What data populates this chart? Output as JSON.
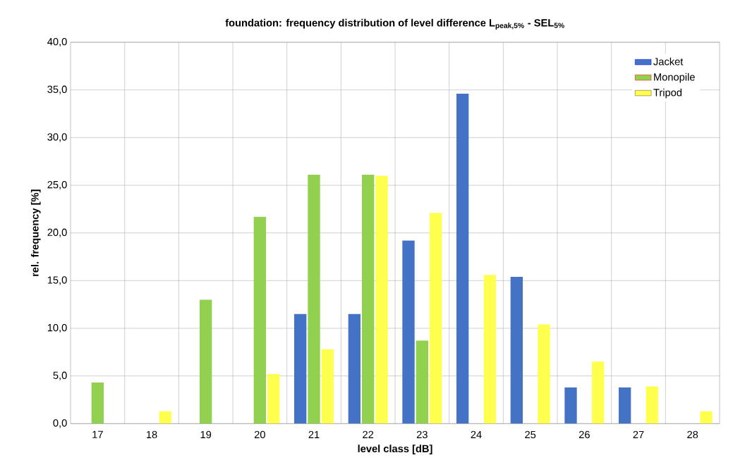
{
  "chart_data": {
    "type": "bar",
    "title": "foundation: frequency distribution of level difference L$_{peak,5%}$ - SEL$_{5%}$",
    "xlabel": "level class [dB]",
    "ylabel": "rel. frequency [%]",
    "categories": [
      "17",
      "18",
      "19",
      "20",
      "21",
      "22",
      "23",
      "24",
      "25",
      "26",
      "27",
      "28"
    ],
    "series": [
      {
        "name": "Jacket",
        "color": "#4472c4",
        "values": [
          null,
          null,
          null,
          null,
          11.5,
          11.5,
          19.2,
          34.6,
          15.4,
          3.8,
          3.8,
          null
        ]
      },
      {
        "name": "Monopile",
        "color": "#92d050",
        "values": [
          4.3,
          null,
          13.0,
          21.7,
          26.1,
          26.1,
          8.7,
          null,
          null,
          null,
          null,
          null
        ]
      },
      {
        "name": "Tripod",
        "color": "#ffff4d",
        "values": [
          null,
          1.3,
          null,
          5.2,
          7.8,
          26.0,
          22.1,
          15.6,
          10.4,
          6.5,
          3.9,
          1.3
        ]
      }
    ],
    "ylim": [
      0,
      40
    ],
    "yticks": [
      {
        "value": 0,
        "label": "0,0"
      },
      {
        "value": 5,
        "label": "5,0"
      },
      {
        "value": 10,
        "label": "10,0"
      },
      {
        "value": 15,
        "label": "15,0"
      },
      {
        "value": 20,
        "label": "20,0"
      },
      {
        "value": 25,
        "label": "25,0"
      },
      {
        "value": 30,
        "label": "30,0"
      },
      {
        "value": 35,
        "label": "35,0"
      },
      {
        "value": 40,
        "label": "40,0"
      }
    ],
    "grid": true,
    "legend": "top right"
  }
}
